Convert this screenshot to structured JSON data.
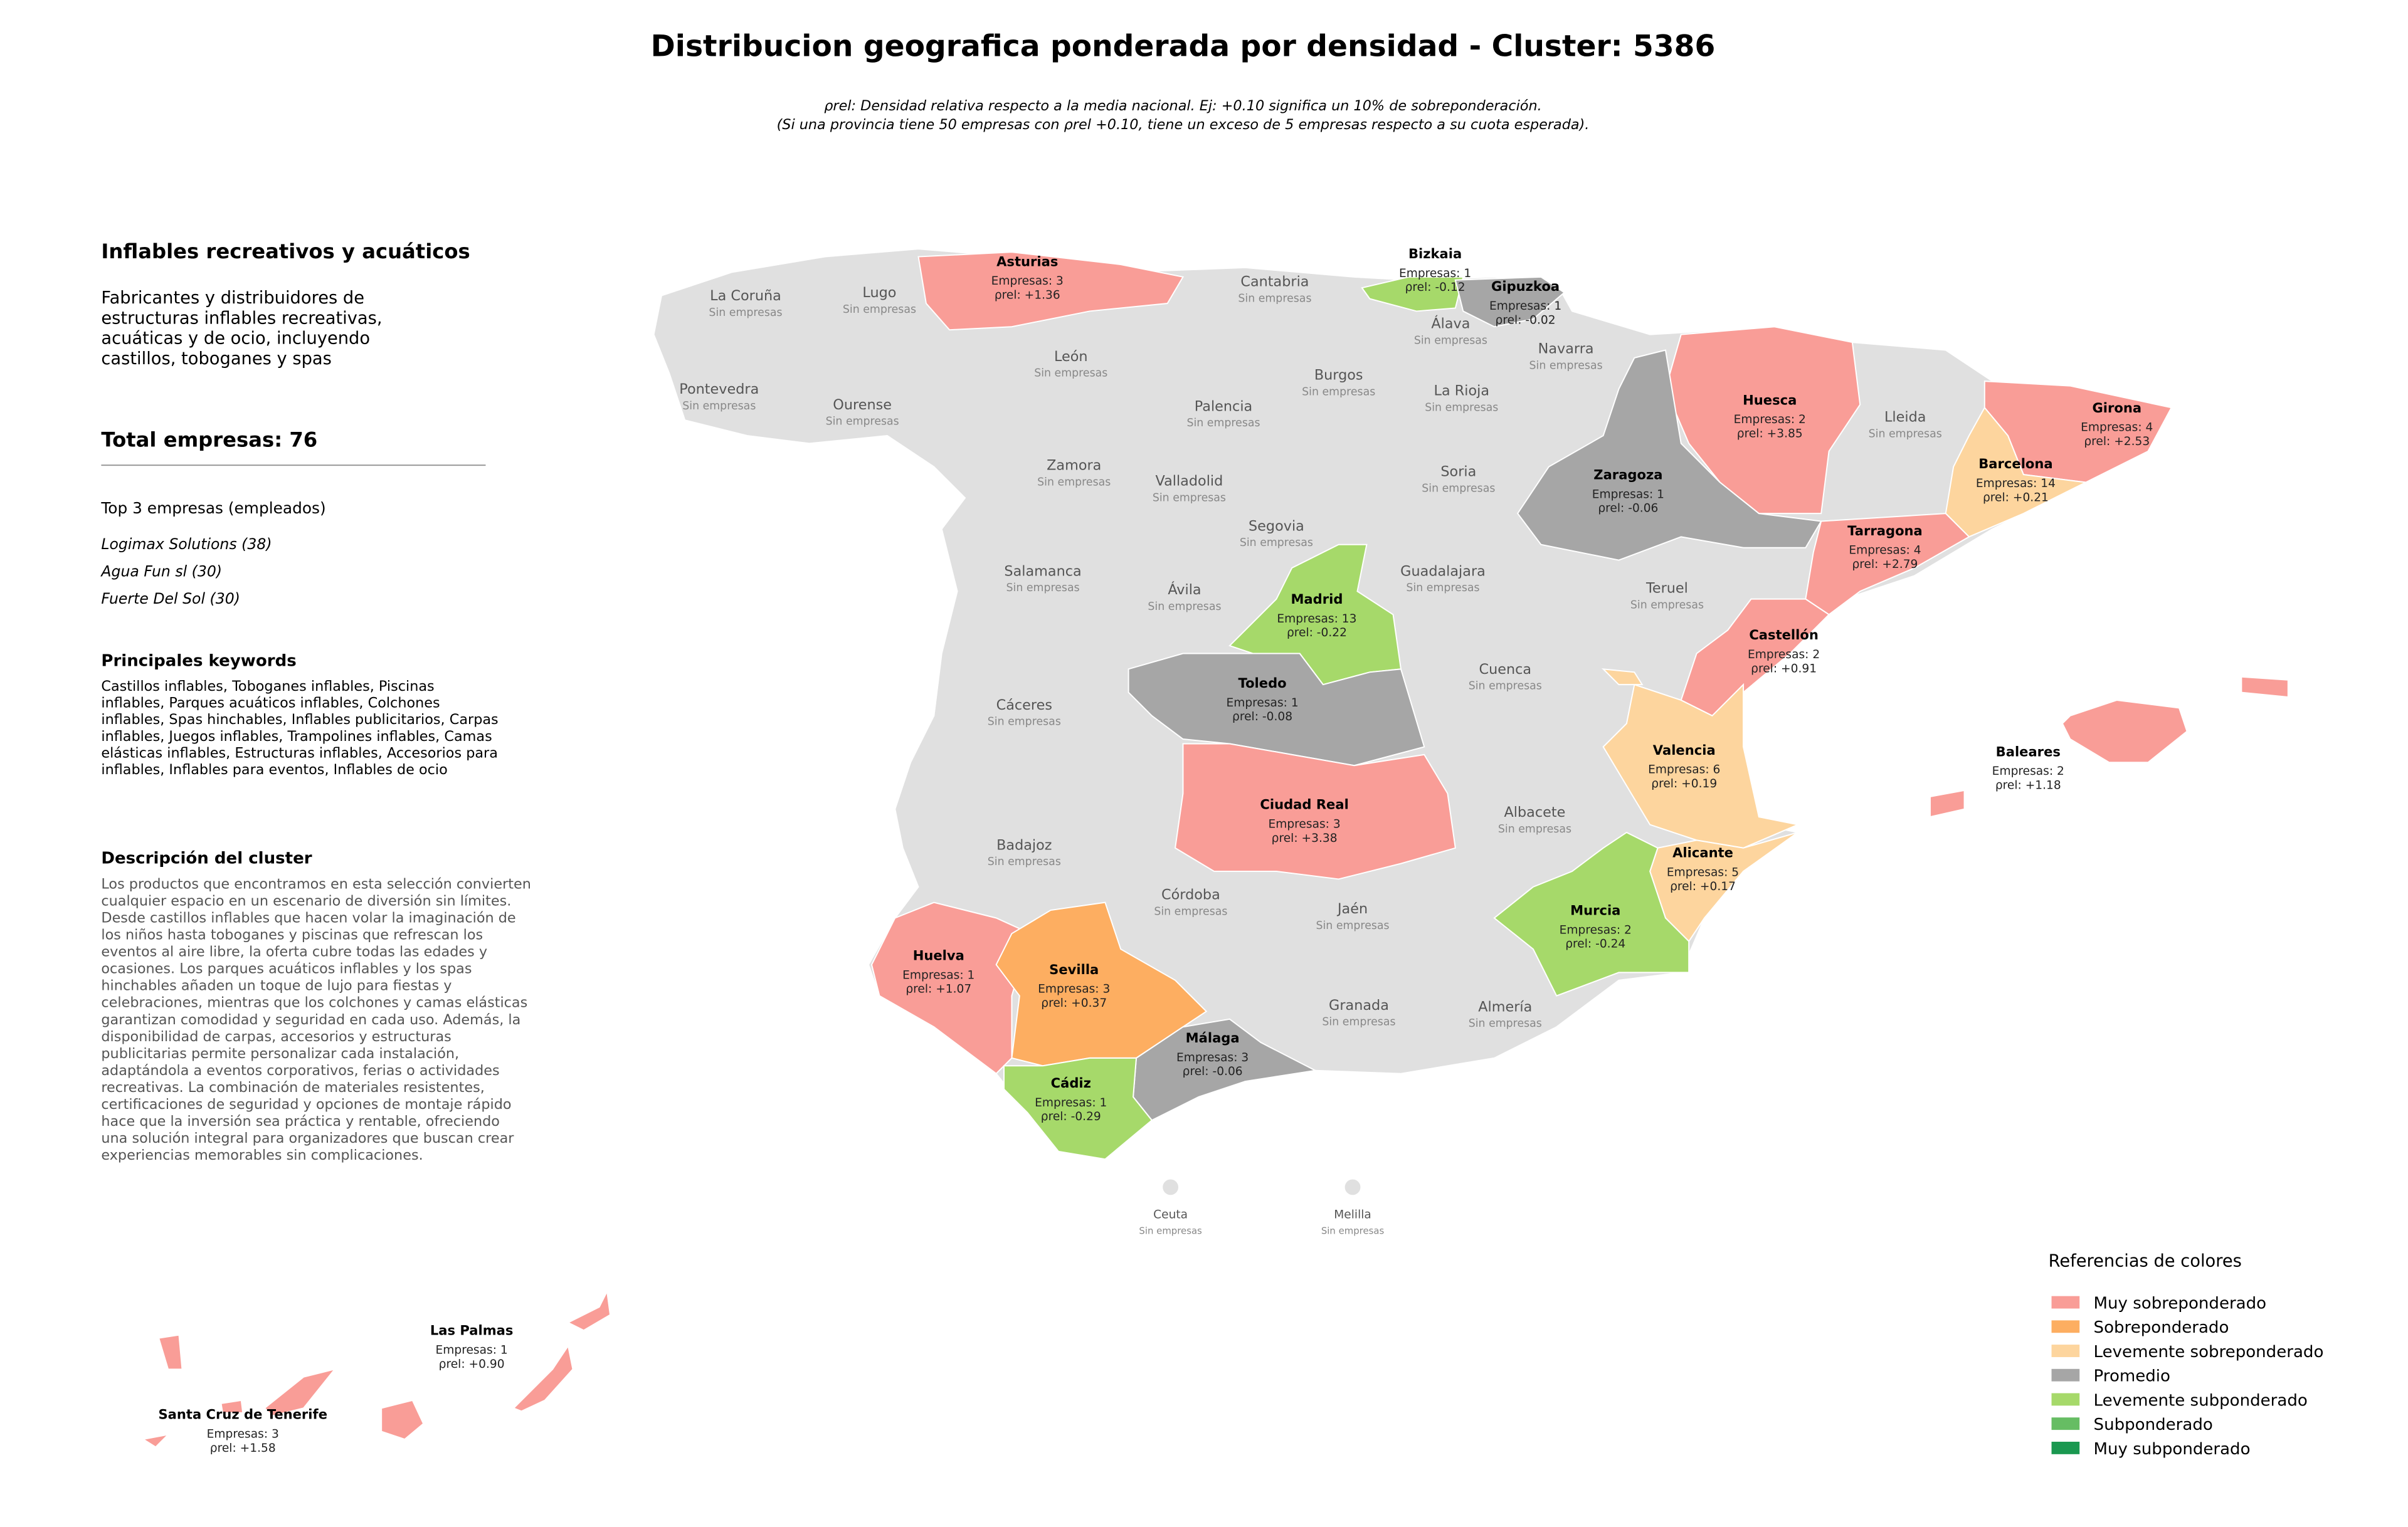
{
  "title": "Distribucion geografica ponderada por densidad - Cluster: 5386",
  "subtitle": [
    "ρrel: Densidad relativa respecto a la media nacional. Ej: +0.10 significa un 10% de sobreponderación.",
    "(Si una provincia tiene 50 empresas con ρrel +0.10, tiene un exceso de 5 empresas respecto a su cuota esperada)."
  ],
  "panel": {
    "heading": "Inflables recreativos y acuáticos",
    "summary": [
      "Fabricantes y distribuidores de",
      "estructuras inflables recreativas,",
      "acuáticas y de ocio, incluyendo",
      "castillos, toboganes y spas"
    ],
    "total": "Total empresas: 76",
    "top_title": "Top 3 empresas (empleados)",
    "top": [
      "Logimax Solutions (38)",
      "Agua Fun sl (30)",
      "Fuerte Del Sol (30)"
    ],
    "keywords_title": "Principales keywords",
    "keywords": [
      "Castillos inflables, Toboganes inflables, Piscinas",
      "inflables, Parques acuáticos inflables, Colchones",
      "inflables, Spas hinchables, Inflables publicitarios, Carpas",
      "inflables, Juegos inflables, Trampolines inflables, Camas",
      "elásticas inflables, Estructuras inflables, Accesorios para",
      "inflables, Inflables para eventos, Inflables de ocio"
    ],
    "description_title": "Descripción del cluster",
    "description": [
      "Los productos que encontramos en esta selección convierten",
      "cualquier espacio en un escenario de diversión sin límites.",
      "Desde castillos inflables que hacen volar la imaginación de",
      "los niños hasta toboganes y piscinas que refrescan los",
      "eventos al aire libre, la oferta cubre todas las edades y",
      "ocasiones. Los parques acuáticos inflables y los spas",
      "hinchables añaden un toque de lujo para fiestas y",
      "celebraciones, mientras que los colchones y camas elásticas",
      "garantizan comodidad y seguridad en cada uso. Además, la",
      "disponibilidad de carpas, accesorios y estructuras",
      "publicitarias permite personalizar cada instalación,",
      "adaptándola a eventos corporativos, ferias o actividades",
      "recreativas. La combinación de materiales resistentes,",
      "certificaciones de seguridad y opciones de montaje rápido",
      "hace que la inversión sea práctica y rentable, ofreciendo",
      "una solución integral para organizadores que buscan crear",
      "experiencias memorables sin complicaciones."
    ]
  },
  "empty_provinces": {
    "note": "Sin empresas",
    "names": [
      "La Coruña",
      "Lugo",
      "Pontevedra",
      "Ourense",
      "Cantabria",
      "Álava",
      "Navarra",
      "León",
      "Burgos",
      "La Rioja",
      "Palencia",
      "Lleida",
      "Zamora",
      "Valladolid",
      "Soria",
      "Segovia",
      "Salamanca",
      "Guadalajara",
      "Teruel",
      "Ávila",
      "Cuenca",
      "Cáceres",
      "Albacete",
      "Badajoz",
      "Córdoba",
      "Jaén",
      "Granada",
      "Almería",
      "Ceuta",
      "Melilla"
    ],
    "color": "#e0e0e0"
  },
  "provinces": [
    {
      "name": "Asturias",
      "count": "Empresas: 3",
      "rho": "ρrel: +1.36",
      "color": "#f99d97"
    },
    {
      "name": "Bizkaia",
      "count": "Empresas: 1",
      "rho": "ρrel: -0.12",
      "color": "#a6d96a"
    },
    {
      "name": "Gipuzkoa",
      "count": "Empresas: 1",
      "rho": "ρrel: -0.02",
      "color": "#a6a6a6"
    },
    {
      "name": "Huesca",
      "count": "Empresas: 2",
      "rho": "ρrel: +3.85",
      "color": "#f99d97"
    },
    {
      "name": "Girona",
      "count": "Empresas: 4",
      "rho": "ρrel: +2.53",
      "color": "#f99d97"
    },
    {
      "name": "Barcelona",
      "count": "Empresas: 14",
      "rho": "ρrel: +0.21",
      "color": "#fdd59e"
    },
    {
      "name": "Zaragoza",
      "count": "Empresas: 1",
      "rho": "ρrel: -0.06",
      "color": "#a6a6a6"
    },
    {
      "name": "Tarragona",
      "count": "Empresas: 4",
      "rho": "ρrel: +2.79",
      "color": "#f99d97"
    },
    {
      "name": "Madrid",
      "count": "Empresas: 13",
      "rho": "ρrel: -0.22",
      "color": "#a6d96a"
    },
    {
      "name": "Castellón",
      "count": "Empresas: 2",
      "rho": "ρrel: +0.91",
      "color": "#f99d97"
    },
    {
      "name": "Toledo",
      "count": "Empresas: 1",
      "rho": "ρrel: -0.08",
      "color": "#a6a6a6"
    },
    {
      "name": "Valencia",
      "count": "Empresas: 6",
      "rho": "ρrel: +0.19",
      "color": "#fdd59e"
    },
    {
      "name": "Baleares",
      "count": "Empresas: 2",
      "rho": "ρrel: +1.18",
      "color": "#f99d97"
    },
    {
      "name": "Ciudad Real",
      "count": "Empresas: 3",
      "rho": "ρrel: +3.38",
      "color": "#f99d97"
    },
    {
      "name": "Alicante",
      "count": "Empresas: 5",
      "rho": "ρrel: +0.17",
      "color": "#fdd59e"
    },
    {
      "name": "Murcia",
      "count": "Empresas: 2",
      "rho": "ρrel: -0.24",
      "color": "#a6d96a"
    },
    {
      "name": "Huelva",
      "count": "Empresas: 1",
      "rho": "ρrel: +1.07",
      "color": "#f99d97"
    },
    {
      "name": "Sevilla",
      "count": "Empresas: 3",
      "rho": "ρrel: +0.37",
      "color": "#fdae61"
    },
    {
      "name": "Málaga",
      "count": "Empresas: 3",
      "rho": "ρrel: -0.06",
      "color": "#a6a6a6"
    },
    {
      "name": "Cádiz",
      "count": "Empresas: 1",
      "rho": "ρrel: -0.29",
      "color": "#a6d96a"
    },
    {
      "name": "Las Palmas",
      "count": "Empresas: 1",
      "rho": "ρrel: +0.90",
      "color": "#f99d97"
    },
    {
      "name": "Santa Cruz de Tenerife",
      "count": "Empresas: 3",
      "rho": "ρrel: +1.58",
      "color": "#f99d97"
    }
  ],
  "legend": {
    "title": "Referencias de colores",
    "items": [
      {
        "label": "Muy sobreponderado",
        "color": "#f99d97"
      },
      {
        "label": "Sobreponderado",
        "color": "#fdae61"
      },
      {
        "label": "Levemente sobreponderado",
        "color": "#fdd59e"
      },
      {
        "label": "Promedio",
        "color": "#a6a6a6"
      },
      {
        "label": "Levemente subponderado",
        "color": "#a6d96a"
      },
      {
        "label": "Subponderado",
        "color": "#66bd63"
      },
      {
        "label": "Muy subponderado",
        "color": "#1a9850"
      }
    ]
  }
}
